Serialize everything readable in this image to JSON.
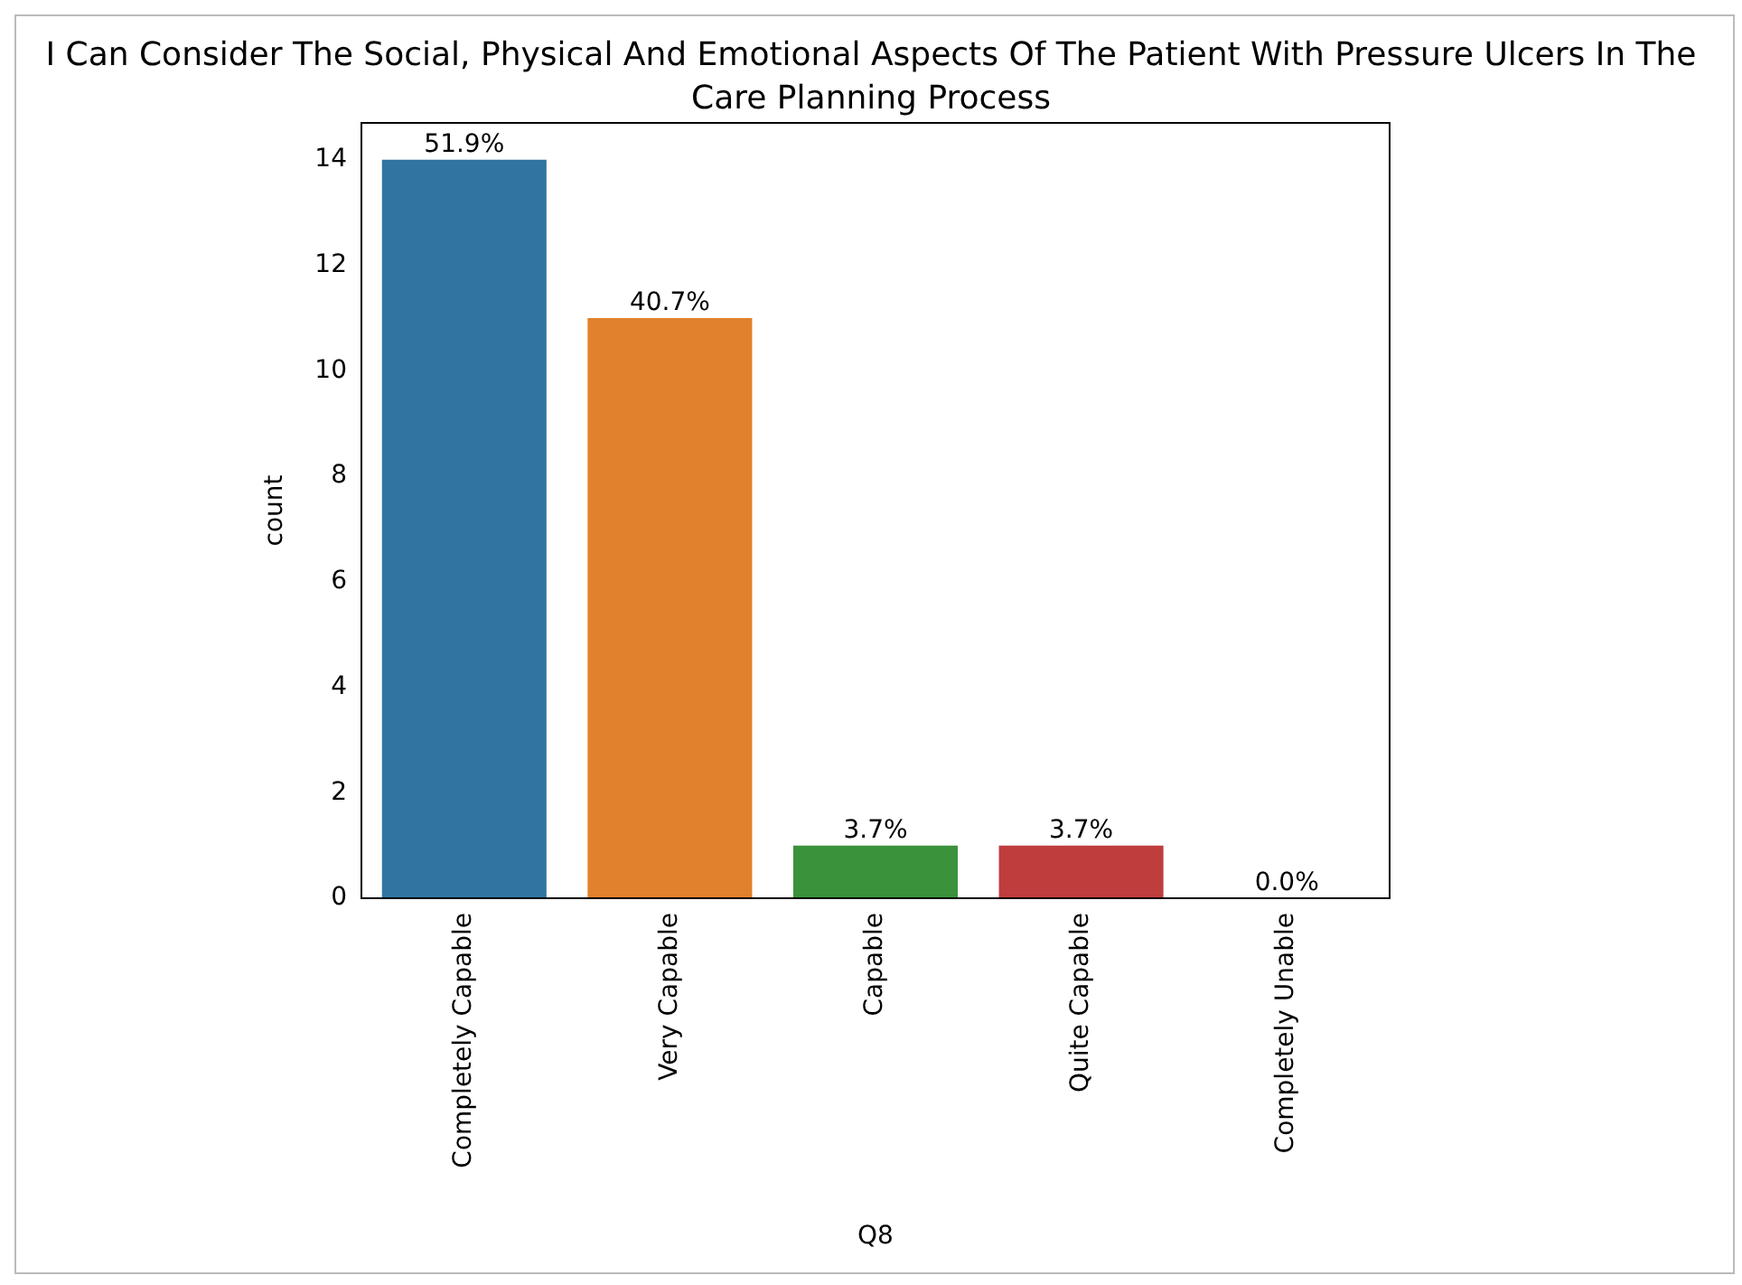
{
  "chart_data": {
    "type": "bar",
    "title": "I Can Consider The Social, Physical And Emotional Aspects Of The Patient With Pressure Ulcers In The Care Planning Process",
    "xlabel": "Q8",
    "ylabel": "count",
    "categories": [
      "Completely Capable",
      "Very Capable",
      "Capable",
      "Quite Capable",
      "Completely Unable"
    ],
    "values": [
      14,
      11,
      1,
      1,
      0
    ],
    "colors": [
      "#3274a1",
      "#e1812c",
      "#3a923a",
      "#c03d3e",
      "#9372b2"
    ],
    "annotations": [
      {
        "text": "51.9%",
        "x": "Completely Capable",
        "y": 14
      },
      {
        "text": "40.7%",
        "x": "Very Capable",
        "y": 11
      },
      {
        "text": "3.7%",
        "x": "Capable",
        "y": 1
      },
      {
        "text": "3.7%",
        "x": "Quite Capable",
        "y": 1
      },
      {
        "text": "0.0%",
        "x": "Completely Unable",
        "y": 0
      }
    ],
    "ylim": [
      0,
      14.7
    ],
    "yticks": [
      0,
      2,
      4,
      6,
      8,
      10,
      12,
      14
    ],
    "grid": false,
    "legend": false
  }
}
